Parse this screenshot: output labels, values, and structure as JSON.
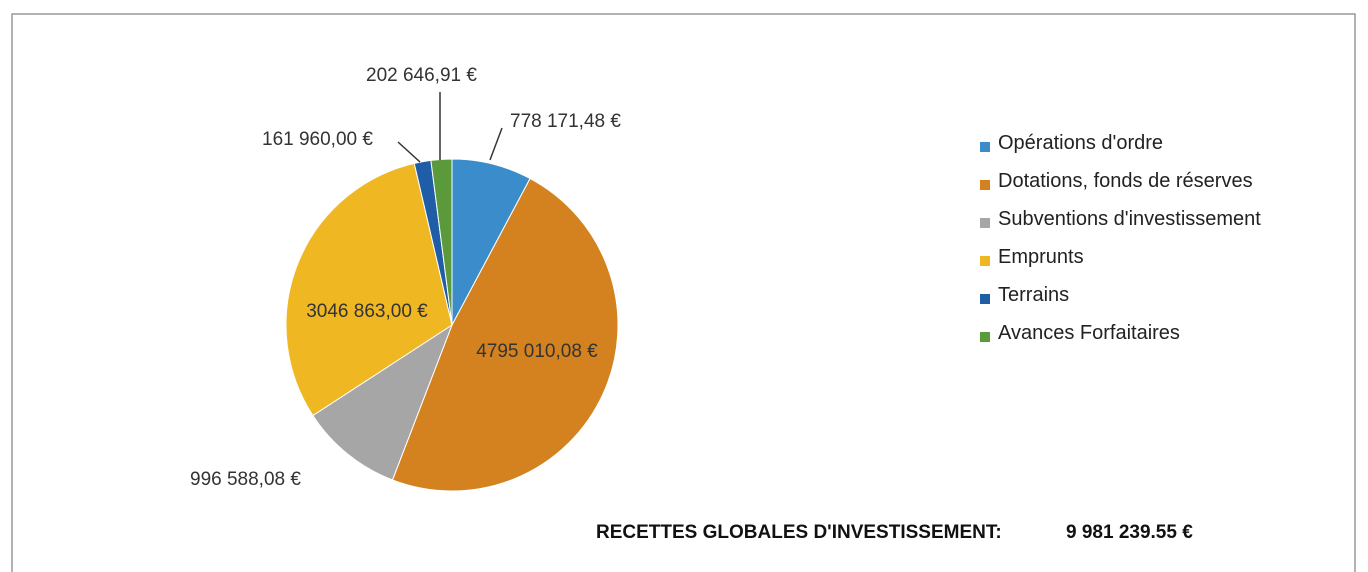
{
  "chart_data": {
    "type": "pie",
    "categories": [
      "Opérations d'ordre",
      "Dotations, fonds de réserves",
      "Subventions d'investissement",
      "Emprunts",
      "Terrains",
      "Avances Forfaitaires"
    ],
    "values": [
      778171.48,
      4795010.08,
      996588.08,
      3046863.0,
      161960.0,
      202646.91
    ],
    "value_labels": [
      "778 171,48 €",
      "4795 010,08 €",
      "996 588,08 €",
      "3046 863,00 €",
      "161 960,00 €",
      "202 646,91 €"
    ],
    "colors": [
      "#3a8ccb",
      "#d4821f",
      "#a6a6a6",
      "#efb722",
      "#1f5ea6",
      "#5b9a3b"
    ],
    "legend": "right",
    "annotations": [
      "RECETTES  GLOBALES D'INVESTISSEMENT:",
      "9 981 239.55 €"
    ]
  }
}
